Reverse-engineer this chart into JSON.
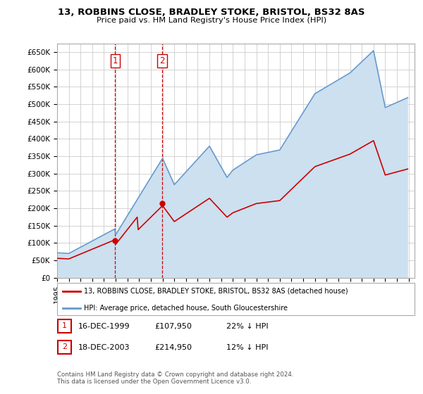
{
  "title": "13, ROBBINS CLOSE, BRADLEY STOKE, BRISTOL, BS32 8AS",
  "subtitle": "Price paid vs. HM Land Registry's House Price Index (HPI)",
  "ylabel_ticks": [
    "£0",
    "£50K",
    "£100K",
    "£150K",
    "£200K",
    "£250K",
    "£300K",
    "£350K",
    "£400K",
    "£450K",
    "£500K",
    "£550K",
    "£600K",
    "£650K"
  ],
  "ytick_values": [
    0,
    50000,
    100000,
    150000,
    200000,
    250000,
    300000,
    350000,
    400000,
    450000,
    500000,
    550000,
    600000,
    650000
  ],
  "ylim": [
    0,
    675000
  ],
  "xlim_start": 1995.0,
  "xlim_end": 2025.5,
  "purchase1": {
    "date": 1999.96,
    "price": 107950,
    "label": "1"
  },
  "purchase2": {
    "date": 2003.96,
    "price": 214950,
    "label": "2"
  },
  "legend_line1": "13, ROBBINS CLOSE, BRADLEY STOKE, BRISTOL, BS32 8AS (detached house)",
  "legend_line2": "HPI: Average price, detached house, South Gloucestershire",
  "table_row1": [
    "1",
    "16-DEC-1999",
    "£107,950",
    "22% ↓ HPI"
  ],
  "table_row2": [
    "2",
    "18-DEC-2003",
    "£214,950",
    "12% ↓ HPI"
  ],
  "footnote": "Contains HM Land Registry data © Crown copyright and database right 2024.\nThis data is licensed under the Open Government Licence v3.0.",
  "line_color_red": "#cc0000",
  "line_color_blue": "#6699cc",
  "fill_color_blue": "#cce0f0",
  "grid_color": "#cccccc",
  "background_color": "#ffffff",
  "vline_color": "#cc0000"
}
